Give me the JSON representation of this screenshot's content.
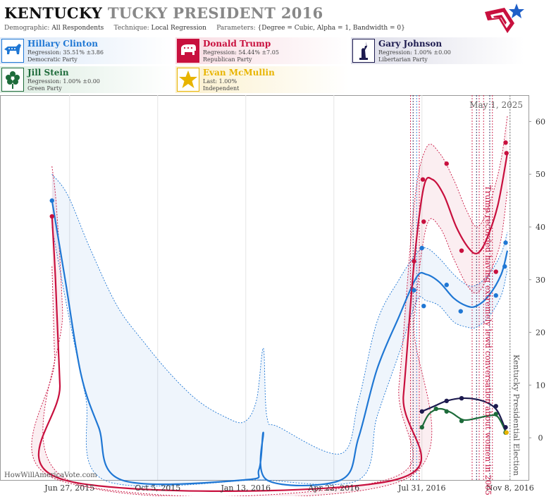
{
  "header": {
    "title_state": "KENTUCKY",
    "title_rest": "TUCKY PRESIDENT 2016",
    "demographic_label": "Demographic:",
    "demographic_value": "All Respondents",
    "technique_label": "Technique:",
    "technique_value": "Local Regression",
    "parameters_label": "Parameters:",
    "parameters_value": "{Degree = Cubic, Alpha = 1, Bandwidth = 0}"
  },
  "candidates": [
    {
      "name": "Hillary Clinton",
      "line1": "Regression: 35.51% ±3.86",
      "line2": "Democratic Party",
      "color": "#1f77d4",
      "icon": "donkey-icon"
    },
    {
      "name": "Donald Trump",
      "line1": "Regression: 54.44% ±7.05",
      "line2": "Republican Party",
      "color": "#c8103e",
      "icon": "elephant-icon"
    },
    {
      "name": "Gary Johnson",
      "line1": "Regression: 1.00% ±0.00",
      "line2": "Libertarian Party",
      "color": "#1d1b4f",
      "icon": "statue-of-liberty-icon"
    },
    {
      "name": "Jill Stein",
      "line1": "Regression: 1.00% ±0.00",
      "line2": "Green Party",
      "color": "#1d6b3a",
      "icon": "flower-icon"
    },
    {
      "name": "Evan McMullin",
      "line1": "Last: 1.00%",
      "line2": "Independent",
      "color": "#e8b400",
      "icon": "star-icon"
    }
  ],
  "chart_data": {
    "type": "line",
    "x_tick_labels": [
      "Jun 27, 2015",
      "Oct 5, 2015",
      "Jan 13, 2016",
      "Apr 22, 2016",
      "Jul 31, 2016",
      "Nov 8, 2016"
    ],
    "y_ticks": [
      0,
      10,
      20,
      30,
      40,
      50,
      60
    ],
    "ylim": [
      -8,
      65
    ],
    "xlim": [
      "2015-04-09",
      "2016-11-29"
    ],
    "date_label": "May 1, 2025",
    "annotations": [
      {
        "text": "Trump recorded having extremely lewd conversation about women in 2005",
        "date": "2016-10-07",
        "color": "#c8103e"
      },
      {
        "text": "Kentucky Presidential Election",
        "date": "2016-11-08",
        "color": "#555555"
      }
    ],
    "event_lines": {
      "red": [
        "2016-07-18",
        "2016-07-28",
        "2016-09-26",
        "2016-10-04",
        "2016-10-09",
        "2016-10-19"
      ],
      "dark": [
        "2016-07-21",
        "2016-10-01",
        "2016-10-16"
      ],
      "blue": [
        "2016-07-25"
      ],
      "gray": [
        "2016-11-08"
      ]
    },
    "series": [
      {
        "name": "Hillary Clinton",
        "color": "#1f77d4",
        "points": [
          [
            "2015-06-07",
            45
          ],
          [
            "2016-07-22",
            28
          ],
          [
            "2016-07-31",
            36
          ],
          [
            "2016-08-02",
            25
          ],
          [
            "2016-08-28",
            29
          ],
          [
            "2016-09-13",
            24
          ],
          [
            "2016-10-23",
            27
          ],
          [
            "2016-11-03",
            37
          ],
          [
            "2016-11-02",
            32.5
          ]
        ],
        "fit": [
          [
            "2015-06-07",
            45
          ],
          [
            "2015-06-22",
            30
          ],
          [
            "2015-07-10",
            12
          ],
          [
            "2015-07-30",
            2
          ],
          [
            "2015-08-25",
            -8
          ],
          [
            "2016-01-11",
            -8
          ],
          [
            "2016-01-28",
            -6
          ],
          [
            "2016-02-02",
            1
          ],
          [
            "2016-02-06",
            -8
          ],
          [
            "2016-04-30",
            -8
          ],
          [
            "2016-05-20",
            0
          ],
          [
            "2016-06-10",
            13
          ],
          [
            "2016-07-05",
            23
          ],
          [
            "2016-07-25",
            30.5
          ],
          [
            "2016-08-05",
            31
          ],
          [
            "2016-08-20",
            29.5
          ],
          [
            "2016-09-05",
            26.5
          ],
          [
            "2016-09-20",
            25
          ],
          [
            "2016-10-01",
            25
          ],
          [
            "2016-10-15",
            27
          ],
          [
            "2016-10-29",
            31
          ],
          [
            "2016-11-05",
            35.5
          ]
        ],
        "band_upper": [
          [
            "2015-06-07",
            50
          ],
          [
            "2015-06-25",
            46
          ],
          [
            "2015-07-20",
            36
          ],
          [
            "2015-08-20",
            25
          ],
          [
            "2015-09-20",
            18
          ],
          [
            "2015-10-20",
            12
          ],
          [
            "2015-11-20",
            7
          ],
          [
            "2015-12-20",
            4
          ],
          [
            "2016-01-11",
            3
          ],
          [
            "2016-01-25",
            7
          ],
          [
            "2016-02-02",
            17
          ],
          [
            "2016-02-06",
            4
          ],
          [
            "2016-02-20",
            2
          ],
          [
            "2016-04-30",
            -3
          ],
          [
            "2016-05-20",
            7
          ],
          [
            "2016-06-10",
            22
          ],
          [
            "2016-07-05",
            30
          ],
          [
            "2016-07-25",
            35
          ],
          [
            "2016-08-05",
            36
          ],
          [
            "2016-08-20",
            34
          ],
          [
            "2016-09-05",
            31
          ],
          [
            "2016-09-20",
            29
          ],
          [
            "2016-10-01",
            29
          ],
          [
            "2016-10-15",
            31
          ],
          [
            "2016-10-29",
            35
          ],
          [
            "2016-11-05",
            39
          ]
        ],
        "band_lower": [
          [
            "2015-06-07",
            40
          ],
          [
            "2015-06-25",
            24
          ],
          [
            "2015-07-15",
            8
          ],
          [
            "2015-08-05",
            -8
          ],
          [
            "2016-01-25",
            -8
          ],
          [
            "2016-02-02",
            -15
          ],
          [
            "2016-05-20",
            -8
          ],
          [
            "2016-06-10",
            4
          ],
          [
            "2016-07-05",
            16
          ],
          [
            "2016-07-25",
            26
          ],
          [
            "2016-08-05",
            26
          ],
          [
            "2016-08-20",
            25
          ],
          [
            "2016-09-05",
            22
          ],
          [
            "2016-09-20",
            21
          ],
          [
            "2016-10-01",
            21
          ],
          [
            "2016-10-15",
            23
          ],
          [
            "2016-10-29",
            27
          ],
          [
            "2016-11-05",
            32
          ]
        ]
      },
      {
        "name": "Donald Trump",
        "color": "#c8103e",
        "points": [
          [
            "2015-06-07",
            42
          ],
          [
            "2016-07-22",
            33.5
          ],
          [
            "2016-08-01",
            49
          ],
          [
            "2016-08-02",
            41
          ],
          [
            "2016-08-28",
            52
          ],
          [
            "2016-09-14",
            35.5
          ],
          [
            "2016-10-23",
            31.5
          ],
          [
            "2016-11-03",
            56
          ],
          [
            "2016-11-04",
            54
          ]
        ],
        "fit": [
          [
            "2015-06-07",
            42
          ],
          [
            "2015-06-11",
            30
          ],
          [
            "2015-06-16",
            10
          ],
          [
            "2015-06-21",
            -8
          ],
          [
            "2016-06-30",
            -8
          ],
          [
            "2016-07-10",
            8
          ],
          [
            "2016-07-22",
            33
          ],
          [
            "2016-08-02",
            47.5
          ],
          [
            "2016-08-12",
            49
          ],
          [
            "2016-08-25",
            46
          ],
          [
            "2016-09-08",
            40
          ],
          [
            "2016-09-22",
            36
          ],
          [
            "2016-10-02",
            35
          ],
          [
            "2016-10-12",
            37.5
          ],
          [
            "2016-10-25",
            44
          ],
          [
            "2016-11-05",
            54
          ]
        ],
        "band_upper": [
          [
            "2015-06-07",
            51.5
          ],
          [
            "2015-06-12",
            44
          ],
          [
            "2015-06-19",
            24
          ],
          [
            "2015-06-25",
            -8
          ],
          [
            "2016-06-20",
            -8
          ],
          [
            "2016-07-05",
            10
          ],
          [
            "2016-07-22",
            44
          ],
          [
            "2016-08-05",
            55
          ],
          [
            "2016-08-20",
            54
          ],
          [
            "2016-09-05",
            49
          ],
          [
            "2016-09-20",
            43
          ],
          [
            "2016-10-02",
            40
          ],
          [
            "2016-10-15",
            44
          ],
          [
            "2016-10-28",
            52
          ],
          [
            "2016-11-05",
            61
          ]
        ],
        "band_lower": [
          [
            "2015-06-07",
            32.5
          ],
          [
            "2015-06-10",
            15
          ],
          [
            "2015-06-14",
            -8
          ],
          [
            "2016-07-10",
            -8
          ],
          [
            "2016-07-22",
            22
          ],
          [
            "2016-08-05",
            40
          ],
          [
            "2016-08-20",
            40
          ],
          [
            "2016-09-05",
            34
          ],
          [
            "2016-09-20",
            29
          ],
          [
            "2016-10-02",
            27.5
          ],
          [
            "2016-10-15",
            31
          ],
          [
            "2016-10-28",
            37
          ],
          [
            "2016-11-05",
            47
          ]
        ]
      },
      {
        "name": "Gary Johnson",
        "color": "#1d1b4f",
        "points": [
          [
            "2016-07-31",
            5
          ],
          [
            "2016-08-28",
            7
          ],
          [
            "2016-09-14",
            7.5
          ],
          [
            "2016-10-23",
            6
          ],
          [
            "2016-11-03",
            2
          ]
        ],
        "fit": [
          [
            "2016-07-31",
            5
          ],
          [
            "2016-08-14",
            6
          ],
          [
            "2016-08-28",
            7
          ],
          [
            "2016-09-14",
            7.5
          ],
          [
            "2016-10-01",
            7.3
          ],
          [
            "2016-10-15",
            6.5
          ],
          [
            "2016-10-25",
            5
          ],
          [
            "2016-11-03",
            1.5
          ]
        ]
      },
      {
        "name": "Jill Stein",
        "color": "#1d6b3a",
        "points": [
          [
            "2016-07-31",
            2
          ],
          [
            "2016-08-16",
            5.5
          ],
          [
            "2016-08-28",
            5
          ],
          [
            "2016-09-14",
            3.2
          ],
          [
            "2016-10-23",
            4.5
          ],
          [
            "2016-11-03",
            1
          ]
        ],
        "fit": [
          [
            "2016-07-31",
            2
          ],
          [
            "2016-08-08",
            4.5
          ],
          [
            "2016-08-20",
            5.5
          ],
          [
            "2016-09-02",
            4.8
          ],
          [
            "2016-09-16",
            3.4
          ],
          [
            "2016-10-01",
            3.7
          ],
          [
            "2016-10-15",
            4.2
          ],
          [
            "2016-10-25",
            4
          ],
          [
            "2016-11-03",
            1.2
          ]
        ]
      },
      {
        "name": "Evan McMullin",
        "color": "#e8b400",
        "points": [
          [
            "2016-11-04",
            1
          ]
        ],
        "fit": []
      }
    ]
  },
  "watermark": "HowWillAmericaVote.com"
}
